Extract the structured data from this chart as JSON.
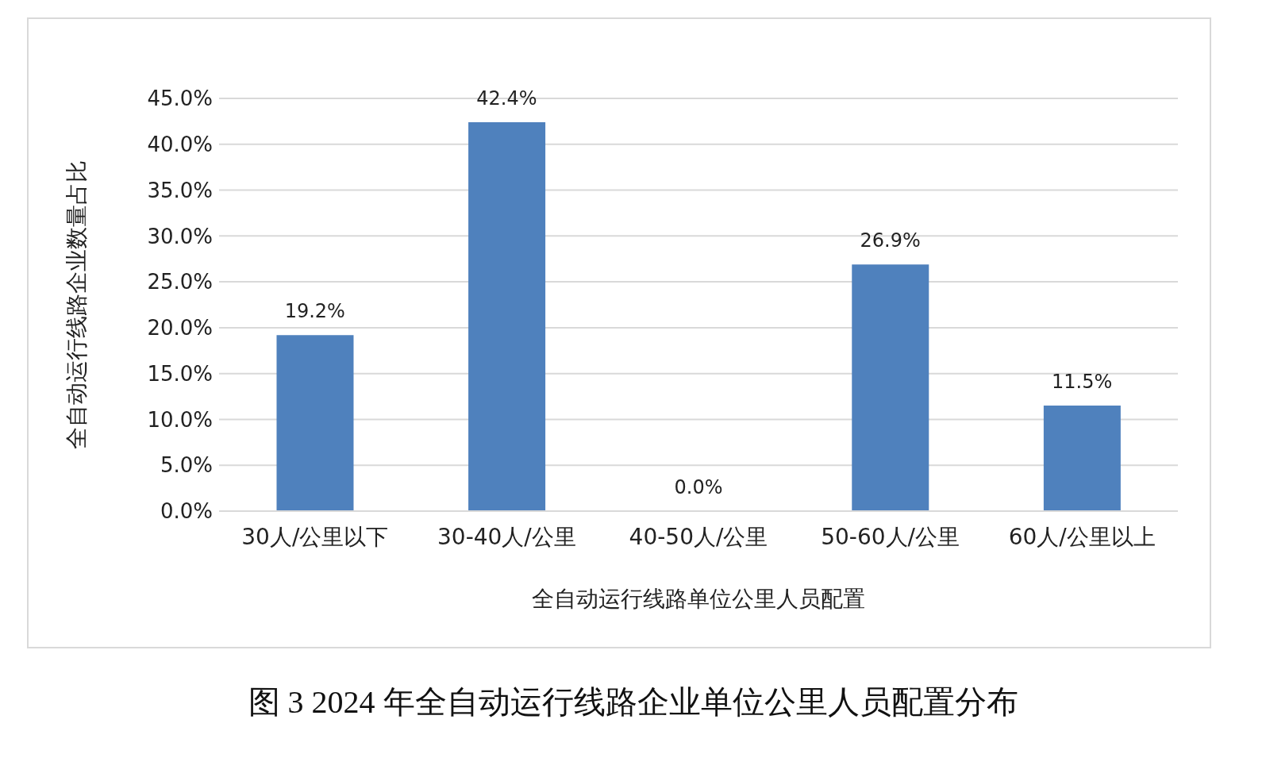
{
  "chart_data": {
    "type": "bar",
    "title": "图 3 2024 年全自动运行线路企业单位公里人员配置分布",
    "xlabel": "全自动运行线路单位公里人员配置",
    "ylabel": "全自动运行线路企业数量占比",
    "categories": [
      "30人/公里以下",
      "30-40人/公里",
      "40-50人/公里",
      "50-60人/公里",
      "60人/公里以上"
    ],
    "values": [
      19.2,
      42.4,
      0.0,
      26.9,
      11.5
    ],
    "value_labels": [
      "19.2%",
      "42.4%",
      "0.0%",
      "26.9%",
      "11.5%"
    ],
    "color": "#4f81bd",
    "ylim": [
      0,
      45
    ],
    "yticks": [
      {
        "value": 0,
        "label": "0.0%"
      },
      {
        "value": 5,
        "label": "5.0%"
      },
      {
        "value": 10,
        "label": "10.0%"
      },
      {
        "value": 15,
        "label": "15.0%"
      },
      {
        "value": 20,
        "label": "20.0%"
      },
      {
        "value": 25,
        "label": "25.0%"
      },
      {
        "value": 30,
        "label": "30.0%"
      },
      {
        "value": 35,
        "label": "35.0%"
      },
      {
        "value": 40,
        "label": "40.0%"
      },
      {
        "value": 45,
        "label": "45.0%"
      }
    ],
    "grid": "y"
  }
}
